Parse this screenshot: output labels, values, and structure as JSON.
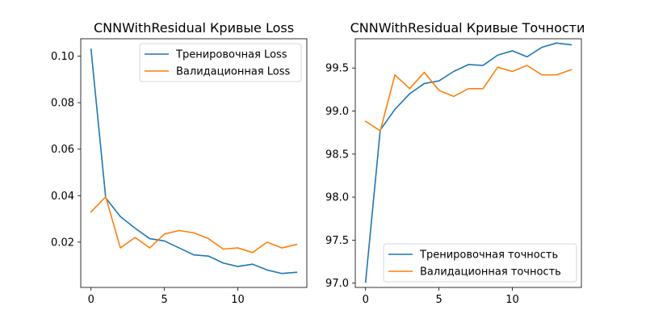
{
  "chart_data": [
    {
      "type": "line",
      "title": "CNNWithResidual Кривые Loss",
      "xlabel": "",
      "ylabel": "",
      "x": [
        0,
        1,
        2,
        3,
        4,
        5,
        6,
        7,
        8,
        9,
        10,
        11,
        12,
        13,
        14
      ],
      "xlim": [
        -0.7,
        14.7
      ],
      "ylim": [
        0.0005,
        0.1075
      ],
      "xticks": [
        0,
        5,
        10
      ],
      "yticks": [
        0.02,
        0.04,
        0.06,
        0.08,
        0.1
      ],
      "ytick_labels": [
        "0.02",
        "0.04",
        "0.06",
        "0.08",
        "0.10"
      ],
      "grid": false,
      "legend_position": "top-right",
      "series": [
        {
          "name": "Тренировочная Loss",
          "color": "#1f77b4",
          "values": [
            0.103,
            0.039,
            0.031,
            0.026,
            0.0215,
            0.0205,
            0.0175,
            0.0145,
            0.014,
            0.011,
            0.0095,
            0.0105,
            0.008,
            0.0065,
            0.007
          ]
        },
        {
          "name": "Валидационная Loss",
          "color": "#ff7f0e",
          "values": [
            0.033,
            0.0395,
            0.0175,
            0.022,
            0.0175,
            0.0235,
            0.025,
            0.024,
            0.0215,
            0.017,
            0.0175,
            0.0155,
            0.02,
            0.0175,
            0.019
          ]
        }
      ]
    },
    {
      "type": "line",
      "title": "CNNWithResidual Кривые Точности",
      "xlabel": "",
      "ylabel": "",
      "x": [
        0,
        1,
        2,
        3,
        4,
        5,
        6,
        7,
        8,
        9,
        10,
        11,
        12,
        13,
        14
      ],
      "xlim": [
        -0.7,
        14.7
      ],
      "ylim": [
        96.95,
        99.84
      ],
      "xticks": [
        0,
        5,
        10
      ],
      "yticks": [
        97.0,
        97.5,
        98.0,
        98.5,
        99.0,
        99.5
      ],
      "ytick_labels": [
        "97.0",
        "97.5",
        "98.0",
        "98.5",
        "99.0",
        "99.5"
      ],
      "grid": false,
      "legend_position": "bottom-right",
      "series": [
        {
          "name": "Тренировочная точность",
          "color": "#1f77b4",
          "values": [
            97.01,
            98.78,
            99.02,
            99.2,
            99.32,
            99.35,
            99.46,
            99.54,
            99.53,
            99.65,
            99.7,
            99.63,
            99.74,
            99.79,
            99.77
          ]
        },
        {
          "name": "Валидационная точность",
          "color": "#ff7f0e",
          "values": [
            98.88,
            98.77,
            99.42,
            99.26,
            99.45,
            99.24,
            99.17,
            99.26,
            99.26,
            99.51,
            99.46,
            99.53,
            99.42,
            99.42,
            99.48
          ]
        }
      ]
    }
  ]
}
